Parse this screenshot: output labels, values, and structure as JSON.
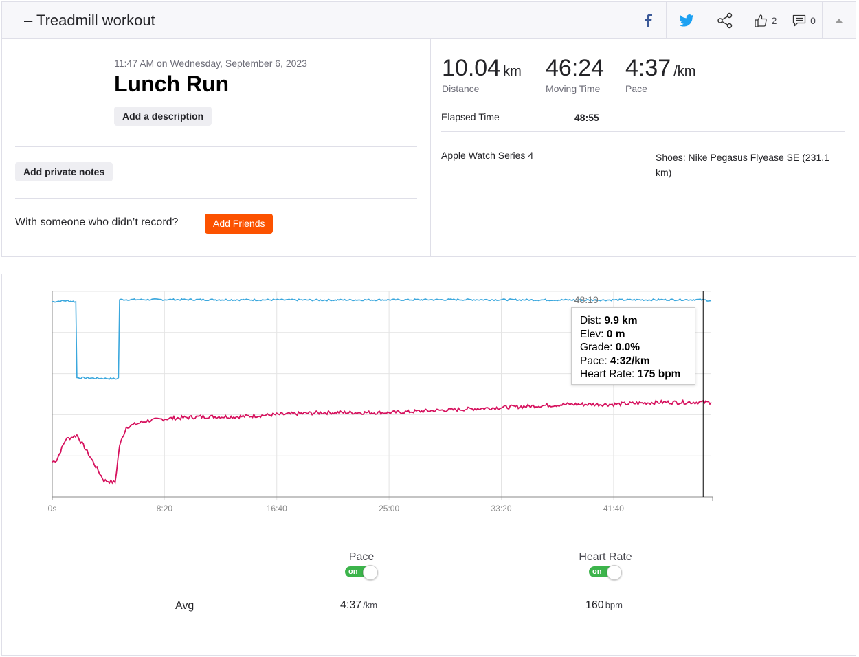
{
  "header": {
    "title": "– Treadmill workout",
    "kudos_count": "2",
    "comments_count": "0"
  },
  "activity": {
    "datetime": "11:47 AM on Wednesday, September 6, 2023",
    "name": "Lunch Run",
    "add_description_label": "Add a description",
    "add_private_notes_label": "Add private notes",
    "friends_prompt": "With someone who didn’t record?",
    "add_friends_label": "Add Friends"
  },
  "stats": {
    "distance_value": "10.04",
    "distance_unit": "km",
    "distance_label": "Distance",
    "moving_time_value": "46:24",
    "moving_time_label": "Moving Time",
    "pace_value": "4:37",
    "pace_unit": "/km",
    "pace_label": "Pace",
    "elapsed_label": "Elapsed Time",
    "elapsed_value": "48:55",
    "device": "Apple Watch Series 4",
    "shoes": "Shoes: Nike Pegasus Flyease SE (231.1 km)"
  },
  "colors": {
    "pace_line": "#3aa7dd",
    "heart_rate_line": "#d6125e",
    "brand_orange": "#fc5200",
    "toggle_on": "#3cb44b"
  },
  "chart_data": {
    "type": "line",
    "x_tick_labels": [
      "0s",
      "8:20",
      "16:40",
      "25:00",
      "33:20",
      "41:40"
    ],
    "x_ticks_seconds": [
      0,
      500,
      1000,
      1500,
      2000,
      2500
    ],
    "xlim_seconds": [
      0,
      2935
    ],
    "series": [
      {
        "name": "Pace",
        "x_seconds": [
          0,
          60,
          105,
          110,
          290,
          295,
          300,
          600,
          1200,
          1800,
          2400,
          2880,
          2935
        ],
        "y_rel": [
          0.95,
          0.955,
          0.95,
          0.58,
          0.575,
          0.58,
          0.96,
          0.96,
          0.958,
          0.96,
          0.958,
          0.96,
          0.955
        ]
      },
      {
        "name": "Heart Rate",
        "x_seconds": [
          0,
          20,
          60,
          110,
          150,
          230,
          280,
          300,
          330,
          420,
          500,
          660,
          820,
          1000,
          1200,
          1500,
          1700,
          1900,
          2100,
          2300,
          2500,
          2700,
          2935
        ],
        "y_rel": [
          0.17,
          0.18,
          0.28,
          0.3,
          0.23,
          0.08,
          0.07,
          0.25,
          0.34,
          0.37,
          0.38,
          0.39,
          0.39,
          0.4,
          0.41,
          0.41,
          0.42,
          0.43,
          0.44,
          0.45,
          0.45,
          0.46,
          0.46
        ]
      }
    ],
    "tooltip": {
      "time": "48:19",
      "time_seconds": 2899,
      "dist_label": "Dist: ",
      "dist_value": "9.9 km",
      "elev_label": "Elev: ",
      "elev_value": "0 m",
      "grade_label": "Grade: ",
      "grade_value": "0.0%",
      "pace_label": "Pace: ",
      "pace_value": "4:32/km",
      "hr_label": "Heart Rate: ",
      "hr_value": "175 bpm"
    }
  },
  "streams": {
    "pace_label": "Pace",
    "heart_rate_label": "Heart Rate",
    "toggle_on_text": "on",
    "avg_label": "Avg",
    "pace_avg": "4:37",
    "pace_avg_unit": "/km",
    "hr_avg": "160",
    "hr_avg_unit": "bpm"
  }
}
